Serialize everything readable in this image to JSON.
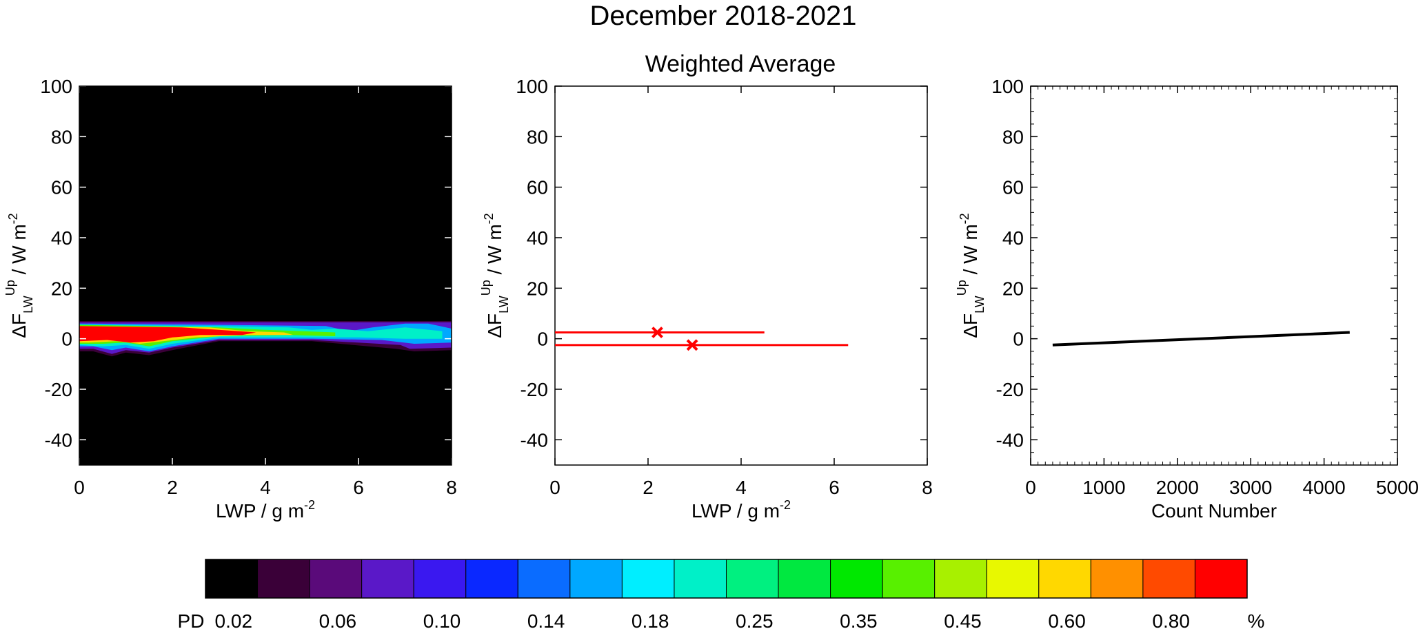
{
  "figure": {
    "title": "December 2018-2021",
    "subtitle": "Weighted Average"
  },
  "chart_data": [
    {
      "type": "heatmap",
      "panel": "left",
      "xlabel": "LWP / g m",
      "xlabel_sup": "-2",
      "ylabel_main": "ΔF",
      "ylabel_sub": "LW",
      "ylabel_sup": "Up",
      "ylabel_tail": " / W m",
      "ylabel_tail_sup": "-2",
      "xlim": [
        0,
        8
      ],
      "ylim": [
        -50,
        100
      ],
      "xticks": [
        0,
        2,
        4,
        6,
        8
      ],
      "yticks": [
        -40,
        -20,
        0,
        20,
        40,
        60,
        80,
        100
      ],
      "background": "#000000",
      "y_band": [
        -5,
        7
      ]
    },
    {
      "type": "scatter",
      "panel": "middle",
      "xlabel": "LWP / g m",
      "xlabel_sup": "-2",
      "ylabel_main": "ΔF",
      "ylabel_sub": "LW",
      "ylabel_sup": "Up",
      "ylabel_tail": " / W m",
      "ylabel_tail_sup": "-2",
      "xlim": [
        0,
        8
      ],
      "ylim": [
        -50,
        100
      ],
      "xticks": [
        0,
        2,
        4,
        6,
        8
      ],
      "yticks": [
        -40,
        -20,
        0,
        20,
        40,
        60,
        80,
        100
      ],
      "color": "#ff0000",
      "points": [
        {
          "x": 2.2,
          "y": 2.5,
          "xerr_low": 0.0,
          "xerr_high": 4.5
        },
        {
          "x": 2.95,
          "y": -2.5,
          "xerr_low": 0.0,
          "xerr_high": 6.3
        }
      ]
    },
    {
      "type": "line",
      "panel": "right",
      "xlabel": "Count Number",
      "ylabel_main": "ΔF",
      "ylabel_sub": "LW",
      "ylabel_sup": "Up",
      "ylabel_tail": " / W m",
      "ylabel_tail_sup": "-2",
      "xlim": [
        0,
        5000
      ],
      "ylim": [
        -50,
        100
      ],
      "xticks": [
        0,
        1000,
        2000,
        3000,
        4000,
        5000
      ],
      "yticks": [
        -40,
        -20,
        0,
        20,
        40,
        60,
        80,
        100
      ],
      "color": "#000000",
      "x": [
        300,
        4350
      ],
      "y": [
        -2.5,
        2.5
      ]
    }
  ],
  "colorbar": {
    "label": "PD",
    "unit": "%",
    "colors": [
      "#000000",
      "#3a0038",
      "#5a0a7a",
      "#5a18c8",
      "#3a18f0",
      "#0a28ff",
      "#0a6cff",
      "#00a8ff",
      "#00eeff",
      "#00f0c8",
      "#00f080",
      "#00e840",
      "#00e800",
      "#58f000",
      "#a8f000",
      "#e8f800",
      "#ffd800",
      "#ff9000",
      "#ff4a00",
      "#ff0000"
    ],
    "tick_labels": [
      "0.02",
      "0.06",
      "0.10",
      "0.14",
      "0.18",
      "0.25",
      "0.35",
      "0.45",
      "0.60",
      "0.80"
    ]
  }
}
